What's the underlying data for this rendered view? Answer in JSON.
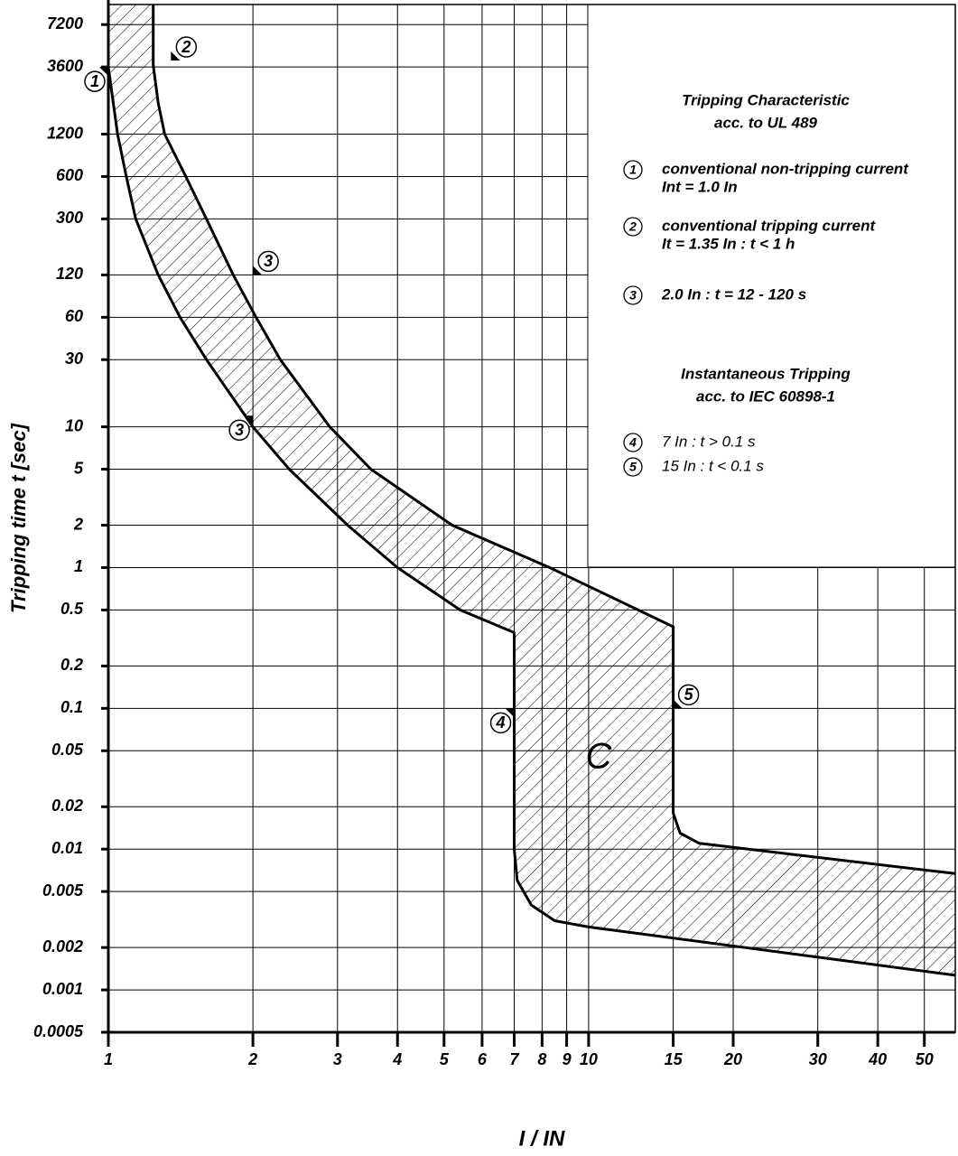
{
  "chart_data": {
    "type": "band",
    "xlabel": "I / IN",
    "ylabel": "Tripping time t [sec]",
    "xlog": true,
    "ylog": true,
    "grid": true,
    "xlim": [
      1,
      58
    ],
    "xticks": [
      1,
      2,
      3,
      4,
      5,
      6,
      7,
      8,
      9,
      10,
      15,
      20,
      30,
      40,
      50
    ],
    "ylim": [
      0.0005,
      10000
    ],
    "yticks": [
      0.0005,
      0.001,
      0.002,
      0.005,
      0.01,
      0.02,
      0.05,
      0.1,
      0.2,
      0.5,
      1,
      2,
      5,
      10,
      30,
      60,
      120,
      300,
      600,
      1200,
      3600,
      7200
    ],
    "series": [
      {
        "color": "#000000",
        "x": [
          1.24,
          1.24,
          1.27,
          1.31,
          1.45,
          1.6,
          1.82,
          2.03,
          2.28,
          2.89,
          3.52,
          5.2,
          8.3,
          15,
          15,
          15.5,
          17,
          58
        ],
        "values": [
          10000,
          3700,
          2000,
          1200,
          600,
          300,
          120,
          60,
          30,
          10,
          5,
          2,
          1,
          0.38,
          0.018,
          0.013,
          0.011,
          0.0067
        ]
      },
      {
        "color": "#000000",
        "x": [
          1,
          1,
          1.045,
          1.09,
          1.14,
          1.27,
          1.41,
          1.6,
          2.0,
          2.38,
          3.15,
          4.0,
          5.4,
          7,
          7,
          7.1,
          7.6,
          8.5,
          10,
          58
        ],
        "values": [
          10000,
          3600,
          1200,
          600,
          300,
          120,
          60,
          30,
          10,
          5,
          2,
          1,
          0.5,
          0.345,
          0.01,
          0.006,
          0.004,
          0.0031,
          0.0028,
          0.00127
        ]
      }
    ],
    "markers": [
      {
        "label": "1",
        "x": 1,
        "y": 3600,
        "side": "left"
      },
      {
        "label": "2",
        "x": 1.35,
        "y": 4000,
        "side": "right"
      },
      {
        "label": "3",
        "x": 2,
        "y": 120,
        "side": "right"
      },
      {
        "label": "3",
        "x": 2,
        "y": 12,
        "side": "left"
      },
      {
        "label": "4",
        "x": 7,
        "y": 0.1,
        "side": "left"
      },
      {
        "label": "5",
        "x": 15,
        "y": 0.1,
        "side": "right"
      }
    ],
    "curve_label": "C",
    "notes": {
      "heading1": [
        "Tripping Characteristic",
        "acc. to UL 489"
      ],
      "items1": [
        {
          "num": "1",
          "lines": [
            "conventional non-tripping current",
            "Int = 1.0 In"
          ]
        },
        {
          "num": "2",
          "lines": [
            "conventional tripping current",
            "It = 1.35 In   : t < 1 h"
          ]
        },
        {
          "num": "3",
          "lines": [
            "2.0 In  : t = 12 - 120 s"
          ]
        }
      ],
      "heading2": [
        "Instantaneous Tripping",
        "acc. to IEC 60898-1"
      ],
      "items2": [
        {
          "num": "4",
          "lines": [
            "7 In : t > 0.1 s"
          ]
        },
        {
          "num": "5",
          "lines": [
            "15 In : t < 0.1 s"
          ]
        }
      ]
    }
  }
}
